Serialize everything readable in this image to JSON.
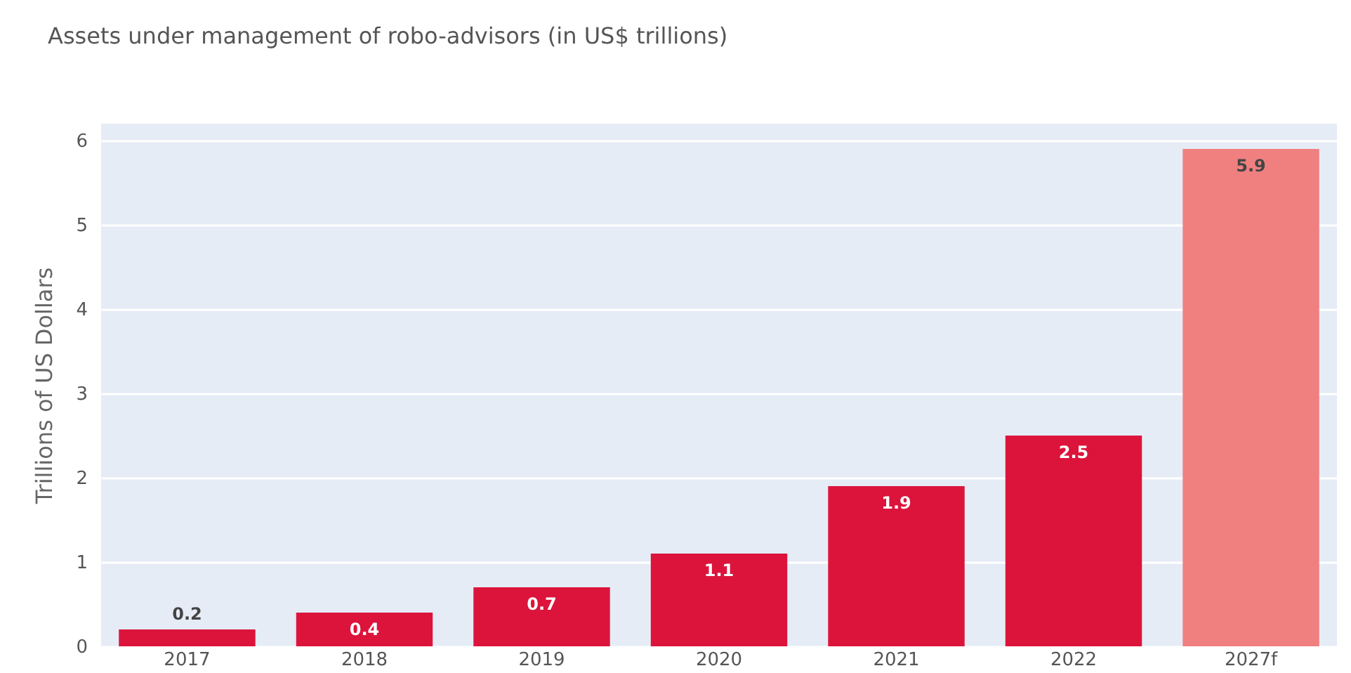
{
  "chart_data": {
    "type": "bar",
    "title": "Assets under management of robo-advisors (in US$ trillions)",
    "ylabel": "Trillions of US Dollars",
    "categories": [
      "2017",
      "2018",
      "2019",
      "2020",
      "2021",
      "2022",
      "2027f"
    ],
    "values": [
      0.2,
      0.4,
      0.7,
      1.1,
      1.9,
      2.5,
      5.9
    ],
    "colors": [
      "#dc143c",
      "#dc143c",
      "#dc143c",
      "#dc143c",
      "#dc143c",
      "#dc143c",
      "#f08080"
    ],
    "ylim": [
      0,
      6.2
    ],
    "yticks": [
      0,
      1,
      2,
      3,
      4,
      5,
      6
    ],
    "grid": "y",
    "data_labels": true
  }
}
